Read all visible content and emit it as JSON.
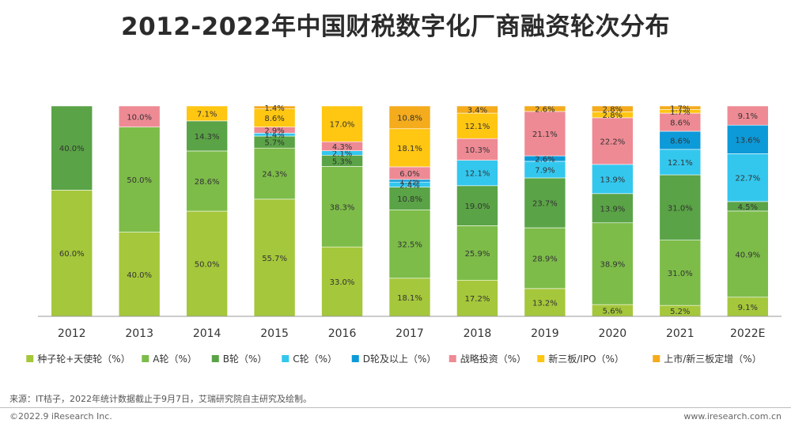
{
  "title": "2012-2022年中国财税数字化厂商融资轮次分布",
  "footer": {
    "source": "来源：IT桔子，2022年统计数据截止于9月7日，艾瑞研究院自主研究及绘制。",
    "copyright": "©2022.9 iResearch Inc.",
    "website": "www.iresearch.com.cn"
  },
  "chart_data": {
    "type": "bar",
    "stacked": true,
    "normalized": true,
    "title": "2012-2022年中国财税数字化厂商融资轮次分布",
    "xlabel": "",
    "ylabel": "",
    "ylim": [
      0,
      100
    ],
    "grid": false,
    "legend_position": "bottom",
    "categories": [
      "2012",
      "2013",
      "2014",
      "2015",
      "2016",
      "2017",
      "2018",
      "2019",
      "2020",
      "2021",
      "2022E"
    ],
    "series": [
      {
        "name": "种子轮+天使轮（%）",
        "color": "#a5c73b",
        "values": [
          60.0,
          40.0,
          50.0,
          55.7,
          33.0,
          18.1,
          17.2,
          13.2,
          5.6,
          5.2,
          9.1
        ]
      },
      {
        "name": "A轮（%）",
        "color": "#7dbc49",
        "values": [
          0,
          50.0,
          28.6,
          24.3,
          38.3,
          32.5,
          25.9,
          28.9,
          38.9,
          31.0,
          40.9
        ]
      },
      {
        "name": "B轮（%）",
        "color": "#5aa346",
        "values": [
          40.0,
          0,
          14.3,
          5.7,
          5.3,
          10.8,
          19.0,
          23.7,
          13.9,
          31.0,
          4.5
        ]
      },
      {
        "name": "C轮（%）",
        "color": "#33c7ee",
        "values": [
          0,
          0,
          0,
          1.4,
          2.1,
          2.4,
          12.1,
          7.9,
          13.9,
          12.1,
          22.7
        ]
      },
      {
        "name": "D轮及以上（%）",
        "color": "#0d9ad8",
        "values": [
          0,
          0,
          0,
          0,
          0,
          1.2,
          0,
          2.6,
          0,
          8.6,
          13.6
        ]
      },
      {
        "name": "战略投资（%）",
        "color": "#ee8a94",
        "values": [
          0,
          10.0,
          0,
          2.9,
          4.3,
          6.0,
          10.3,
          21.1,
          22.2,
          8.6,
          9.1
        ]
      },
      {
        "name": "新三板/IPO（%）",
        "color": "#ffc612",
        "values": [
          0,
          0,
          7.1,
          8.6,
          17.0,
          18.1,
          12.1,
          0,
          2.8,
          1.7,
          0
        ]
      },
      {
        "name": "上市/新三板定增（%）",
        "color": "#f4ab1c",
        "values": [
          0,
          0,
          0,
          1.4,
          0,
          10.8,
          3.4,
          2.6,
          2.8,
          1.7,
          0
        ]
      }
    ]
  }
}
